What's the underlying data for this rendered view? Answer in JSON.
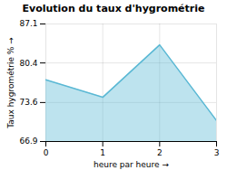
{
  "chart_data": {
    "type": "area",
    "title": "Evolution du taux d'hygrométrie",
    "x_label": "heure par heure",
    "y_label": "Taux hygrométrie %",
    "x": [
      0,
      1,
      2,
      3
    ],
    "values": [
      77.5,
      74.5,
      83.5,
      70.5
    ],
    "color": "#5ab8d4",
    "xlim": [
      0,
      3
    ],
    "ylim": [
      66.9,
      87.1
    ],
    "xticks": [
      0,
      1,
      2,
      3
    ],
    "yticks": [
      66.9,
      73.6,
      80.4,
      87.1
    ],
    "grid": true
  }
}
